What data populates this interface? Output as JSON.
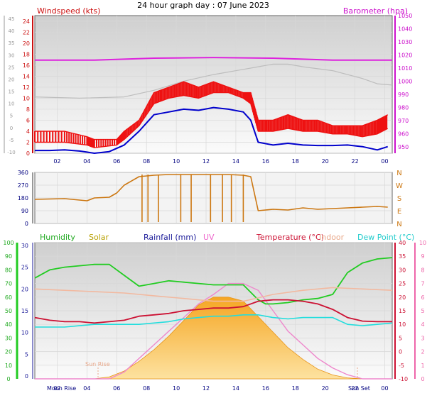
{
  "title": "24 hour graph day : 07 June 2023",
  "colors": {
    "wind": "#ee1111",
    "gust": "#ee1111",
    "avg": "#0000cc",
    "baro": "#dd22dd",
    "baro_bg": "#bdbdbd",
    "direction": "#cc7711",
    "humidity": "#22cc22",
    "solar": "#f5a623",
    "rainfall": "#1a1a99",
    "uv": "#ee88cc",
    "temperature": "#cc1133",
    "indoor": "#f2b9a0",
    "dewpoint": "#22dddd",
    "axis_left": "#cc1111",
    "axis_right": "#cc11cc",
    "axis_green": "#22aa22",
    "axis_pink": "#ee66aa",
    "grid": "#d8d8d8",
    "ticks_x": "#000080"
  },
  "chart_data": [
    {
      "type": "line",
      "name_left": "Windspeed (kts)",
      "name_right": "Barometer (hpa)",
      "x_ticks": [
        "02",
        "04",
        "06",
        "08",
        "10",
        "12",
        "14",
        "16",
        "18",
        "20",
        "22",
        "00"
      ],
      "x_hours": [
        1.5,
        3.5,
        5.5,
        7.5,
        9.5,
        11.5,
        13.5,
        15.5,
        17.5,
        19.5,
        21.5,
        23.5
      ],
      "y_left_ticks": [
        24,
        22,
        20,
        18,
        16,
        14,
        12,
        10,
        8,
        6,
        4,
        2,
        0
      ],
      "y_left_range": [
        0,
        25
      ],
      "y_left2_ticks": [
        45,
        40,
        35,
        30,
        25,
        20,
        15,
        10,
        5,
        0,
        -5,
        -10
      ],
      "y_right_ticks": [
        1050,
        1040,
        1030,
        1020,
        1010,
        1000,
        990,
        980,
        970,
        960,
        950
      ],
      "y_right_range": [
        945,
        1050
      ],
      "series": [
        {
          "name": "",
          "kind": "gust",
          "x": [
            0,
            2,
            3.5,
            4,
            5.5,
            6,
            7,
            8,
            9,
            10,
            11,
            12,
            13,
            14,
            14.5,
            15,
            16,
            17,
            18,
            19,
            20,
            21,
            22,
            23,
            23.7
          ],
          "y": [
            4,
            4,
            3,
            2.5,
            2.5,
            4,
            6,
            11,
            12,
            13,
            12,
            13,
            12,
            11,
            11,
            6,
            6,
            7,
            6,
            6,
            5,
            5,
            5,
            6,
            7
          ]
        },
        {
          "name": "",
          "kind": "speed",
          "x": [
            0,
            2,
            3.5,
            4,
            5.5,
            6,
            7,
            8,
            9,
            10,
            11,
            12,
            13,
            14,
            14.5,
            15,
            16,
            17,
            18,
            19,
            20,
            21,
            22,
            23,
            23.7
          ],
          "y": [
            2,
            2,
            1.5,
            1,
            1.5,
            2.5,
            5,
            9,
            10,
            10.5,
            10,
            11,
            11,
            10,
            9,
            4,
            4,
            4.5,
            4,
            4,
            3.5,
            3.5,
            3,
            3.5,
            4.5
          ]
        },
        {
          "name": "",
          "kind": "average",
          "x": [
            0,
            1,
            2,
            3,
            3.5,
            4,
            5,
            6,
            7,
            7.5,
            8,
            9,
            10,
            11,
            12,
            13,
            14,
            14.5,
            15,
            16,
            17,
            18,
            19,
            20,
            21,
            22,
            23,
            23.7
          ],
          "y": [
            0.5,
            0.5,
            0.6,
            0.4,
            0.2,
            0.0,
            0.3,
            1.5,
            4.0,
            5.5,
            7.0,
            7.5,
            8.0,
            7.8,
            8.3,
            8.0,
            7.5,
            6.0,
            2.0,
            1.5,
            1.8,
            1.5,
            1.4,
            1.4,
            1.5,
            1.2,
            0.6,
            1.2
          ]
        },
        {
          "name": "",
          "kind": "barometer",
          "x": [
            0,
            4,
            8,
            12,
            16,
            20,
            24
          ],
          "y": [
            1016,
            1016,
            1017.5,
            1018,
            1017.5,
            1016,
            1016
          ]
        },
        {
          "name": "",
          "kind": "barometer_trend",
          "x": [
            0,
            3,
            6,
            8,
            10,
            12,
            14,
            15,
            16,
            17,
            18,
            20,
            22,
            23,
            24
          ],
          "y": [
            988,
            987,
            988,
            993,
            1000,
            1005,
            1009,
            1011,
            1013,
            1013,
            1011,
            1008,
            1002,
            998,
            997
          ]
        }
      ]
    },
    {
      "type": "line",
      "name": "Wind direction",
      "y_ticks": [
        360,
        270,
        180,
        90,
        0
      ],
      "y_range": [
        0,
        360
      ],
      "compass": [
        "N",
        "W",
        "S",
        "E",
        "N"
      ],
      "series": [
        {
          "name": "",
          "x": [
            0,
            2,
            3.5,
            4,
            5,
            5.5,
            6,
            7,
            8,
            9,
            10,
            11,
            12,
            13,
            14,
            14.5,
            15,
            16,
            17,
            18,
            19,
            20,
            21,
            22,
            23,
            23.7
          ],
          "y": [
            170,
            175,
            160,
            180,
            185,
            215,
            270,
            330,
            340,
            345,
            345,
            345,
            345,
            345,
            340,
            330,
            90,
            100,
            95,
            110,
            100,
            105,
            110,
            115,
            120,
            115
          ]
        }
      ]
    },
    {
      "type": "area",
      "labels": {
        "humidity": "Humidity",
        "solar": "Solar",
        "rainfall": "Rainfall (mm)",
        "uv": "UV",
        "temperature": "Temperature (°C)",
        "indoor": "Indoor",
        "dewpoint": "Dew Point (°C)"
      },
      "sun_rise": "Sun Rise",
      "sun_set": "Sun Set",
      "moon_rise": "Moon Rise",
      "y_humidity_ticks": [
        100,
        90,
        80,
        70,
        60,
        50,
        40,
        30,
        20,
        10,
        0
      ],
      "y_rain_ticks": [
        30,
        25,
        20,
        15,
        10,
        5,
        0
      ],
      "y_temp_ticks": [
        40,
        35,
        30,
        25,
        20,
        15,
        10,
        5,
        0,
        -5,
        -10
      ],
      "y_uv_ticks": [
        10,
        9,
        8,
        7,
        6,
        5,
        4,
        3,
        2,
        1,
        0
      ],
      "series": [
        {
          "name": "Humidity",
          "x": [
            0,
            1,
            2,
            3,
            4,
            5,
            6,
            7,
            8,
            9,
            10,
            11,
            12,
            13,
            14,
            15,
            15.5,
            16,
            17,
            18,
            19,
            20,
            21,
            22,
            23,
            24
          ],
          "y": [
            74,
            80,
            82,
            83,
            84,
            84,
            76,
            68,
            70,
            72,
            71,
            70,
            69,
            69,
            69,
            58,
            55,
            55,
            56,
            58,
            59,
            62,
            78,
            85,
            88,
            89
          ]
        },
        {
          "name": "Solar",
          "x": [
            0,
            4,
            5,
            6,
            7,
            8,
            9,
            10,
            11,
            12,
            13,
            14,
            15,
            16,
            17,
            18,
            19,
            20,
            21,
            22,
            24
          ],
          "y": [
            0,
            0,
            1,
            4,
            9,
            15,
            22,
            30,
            38,
            42,
            42,
            40,
            32,
            24,
            16,
            10,
            5,
            2,
            0.5,
            0,
            0
          ]
        },
        {
          "name": "UV",
          "x": [
            0,
            5,
            6,
            7,
            8,
            9,
            10,
            11,
            12,
            13,
            14,
            15,
            16,
            17,
            18,
            19,
            20,
            21,
            22,
            24
          ],
          "y": [
            0,
            0,
            0.5,
            1.5,
            2.5,
            3.5,
            4.5,
            5.5,
            6.2,
            7,
            7,
            6.5,
            5,
            3.5,
            2.5,
            1.5,
            0.8,
            0.3,
            0,
            0
          ]
        },
        {
          "name": "Temperature (°C)",
          "x": [
            0,
            1,
            2,
            3,
            4,
            5,
            6,
            7,
            8,
            9,
            10,
            11,
            12,
            13,
            14,
            15,
            16,
            17,
            18,
            19,
            20,
            21,
            22,
            23,
            24
          ],
          "y": [
            12.5,
            11.5,
            11,
            11,
            10.5,
            11,
            11.5,
            13,
            13.5,
            14,
            15,
            15.5,
            16,
            16,
            16.5,
            18.5,
            19,
            19,
            18.5,
            17.5,
            15.5,
            12.5,
            11.2,
            11,
            11
          ]
        },
        {
          "name": "Indoor",
          "x": [
            0,
            2,
            4,
            6,
            8,
            10,
            12,
            14,
            16,
            18,
            20,
            22,
            24
          ],
          "y": [
            23,
            22.5,
            22,
            21.5,
            20.5,
            19.5,
            18.5,
            18.5,
            21,
            22.5,
            23.5,
            23,
            22.5
          ]
        },
        {
          "name": "Dew Point (°C)",
          "x": [
            0,
            1,
            2,
            3,
            4,
            5,
            6,
            7,
            8,
            9,
            10,
            11,
            12,
            13,
            14,
            15,
            16,
            17,
            18,
            19,
            20,
            21,
            22,
            23,
            24
          ],
          "y": [
            9,
            9,
            9,
            9.5,
            10,
            10,
            10,
            10,
            10.5,
            11,
            12,
            12.5,
            13,
            13,
            13.5,
            13.5,
            12.5,
            12,
            12.5,
            12.5,
            12.5,
            10,
            9.5,
            10,
            10.5
          ]
        }
      ]
    }
  ]
}
